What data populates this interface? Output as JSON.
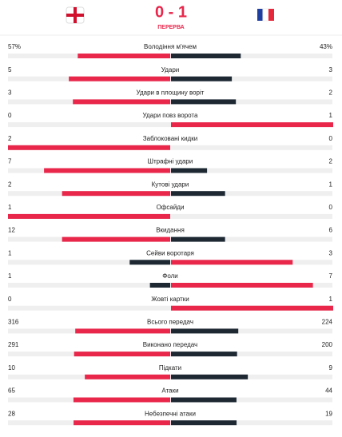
{
  "header": {
    "score": "0 - 1",
    "status": "ПЕРЕРВА"
  },
  "stats": [
    {
      "label": "Володіння м'ячем",
      "home": {
        "value": 57,
        "label": "57%"
      },
      "away": {
        "value": 43,
        "label": "43%"
      }
    },
    {
      "label": "Удари",
      "home": 5,
      "away": 3
    },
    {
      "label": "Удари в площину воріт",
      "home": 3,
      "away": 2
    },
    {
      "label": "Удари повз ворота",
      "home": 0,
      "away": 1
    },
    {
      "label": "Заблоковані кидки",
      "home": 2,
      "away": 0
    },
    {
      "label": "Штрафні удари",
      "home": 7,
      "away": 2
    },
    {
      "label": "Кутові удари",
      "home": 2,
      "away": 1
    },
    {
      "label": "Офсайди",
      "home": 1,
      "away": 0
    },
    {
      "label": "Вкидання",
      "home": 12,
      "away": 6
    },
    {
      "label": "Сейви воротаря",
      "home": 1,
      "away": 3
    },
    {
      "label": "Фоли",
      "home": 1,
      "away": 7
    },
    {
      "label": "Жовті картки",
      "home": 0,
      "away": 1
    },
    {
      "label": "Всього передач",
      "home": 316,
      "away": 224
    },
    {
      "label": "Виконано передач",
      "home": 291,
      "away": 200
    },
    {
      "label": "Підкати",
      "home": 10,
      "away": 9
    },
    {
      "label": "Атаки",
      "home": 65,
      "away": 44
    },
    {
      "label": "Небезпечні атаки",
      "home": 28,
      "away": 19
    }
  ]
}
